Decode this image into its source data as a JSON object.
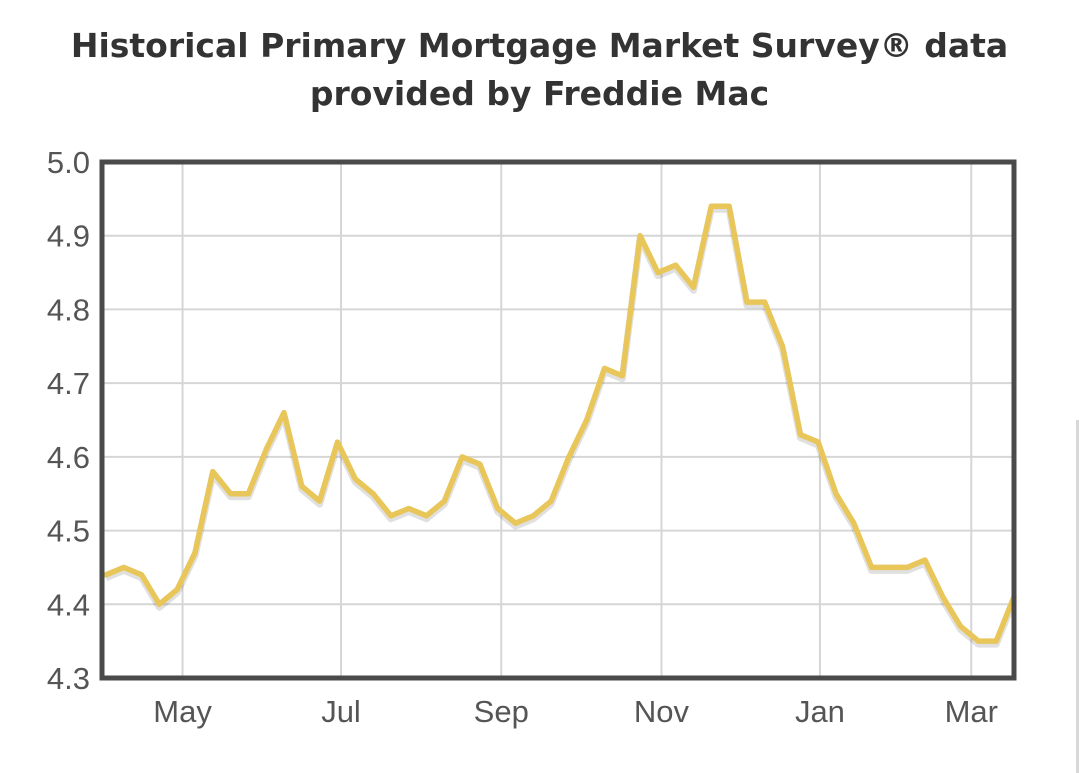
{
  "title_line1": "Historical Primary Mortgage Market Survey® data",
  "title_line2": "provided by Freddie Mac",
  "chart_data": {
    "type": "line",
    "title": "Historical Primary Mortgage Market Survey® data provided by Freddie Mac",
    "xlabel": "",
    "ylabel": "",
    "ylim": [
      4.3,
      5.0
    ],
    "yticks": [
      4.3,
      4.4,
      4.5,
      4.6,
      4.7,
      4.8,
      4.9,
      5.0
    ],
    "ytick_labels": [
      "4.3",
      "4.4",
      "4.5",
      "4.6",
      "4.7",
      "4.8",
      "4.9",
      "5.0"
    ],
    "xticks": [
      {
        "label": "May",
        "pos": 4.3
      },
      {
        "label": "Jul",
        "pos": 13.2
      },
      {
        "label": "Sep",
        "pos": 22.2
      },
      {
        "label": "Nov",
        "pos": 31.2
      },
      {
        "label": "Jan",
        "pos": 40.1
      },
      {
        "label": "Mar",
        "pos": 48.6
      }
    ],
    "grid": true,
    "line_color": "#e8c65a",
    "series": [
      {
        "values": [
          4.44,
          4.45,
          4.44,
          4.4,
          4.42,
          4.47,
          4.58,
          4.55,
          4.55,
          4.61,
          4.66,
          4.56,
          4.54,
          4.62,
          4.57,
          4.55,
          4.52,
          4.53,
          4.52,
          4.54,
          4.6,
          4.59,
          4.53,
          4.51,
          4.52,
          4.54,
          4.6,
          4.65,
          4.72,
          4.71,
          4.9,
          4.85,
          4.86,
          4.83,
          4.94,
          4.94,
          4.81,
          4.81,
          4.75,
          4.63,
          4.62,
          4.55,
          4.51,
          4.45,
          4.45,
          4.45,
          4.46,
          4.41,
          4.37,
          4.35,
          4.35,
          4.41
        ]
      }
    ]
  }
}
